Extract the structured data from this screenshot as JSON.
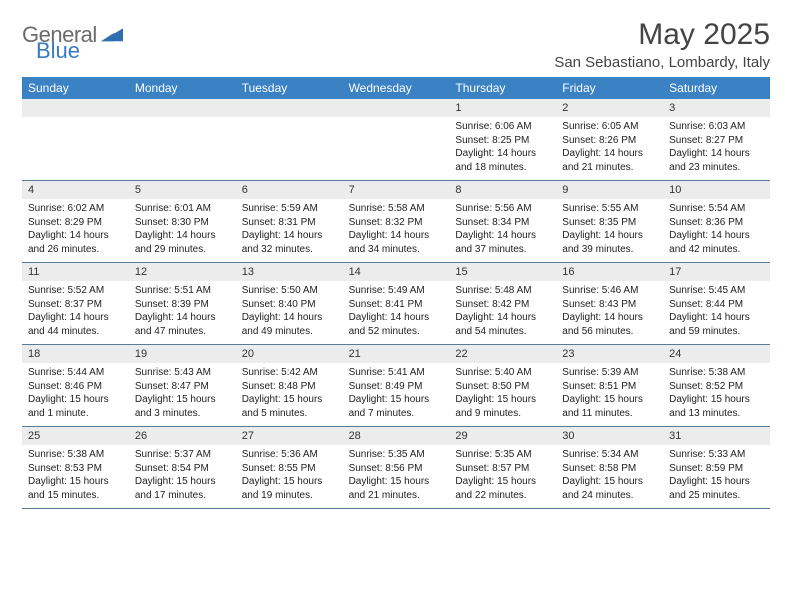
{
  "brand": {
    "name_a": "General",
    "name_b": "Blue",
    "color_a": "#6b6b6b",
    "color_b": "#3a7bbf"
  },
  "title": "May 2025",
  "location": "San Sebastiano, Lombardy, Italy",
  "colors": {
    "header_bg": "#3a82c4",
    "header_text": "#ffffff",
    "daynum_bg": "#ececec",
    "border": "#5a7a9a",
    "text": "#222222",
    "bg": "#ffffff"
  },
  "fonts": {
    "title_size": 30,
    "location_size": 15,
    "weekday_size": 12,
    "daynum_size": 11,
    "body_size": 10
  },
  "weekdays": [
    "Sunday",
    "Monday",
    "Tuesday",
    "Wednesday",
    "Thursday",
    "Friday",
    "Saturday"
  ],
  "weeks": [
    [
      null,
      null,
      null,
      null,
      {
        "n": "1",
        "sr": "6:06 AM",
        "ss": "8:25 PM",
        "dl": "14 hours and 18 minutes."
      },
      {
        "n": "2",
        "sr": "6:05 AM",
        "ss": "8:26 PM",
        "dl": "14 hours and 21 minutes."
      },
      {
        "n": "3",
        "sr": "6:03 AM",
        "ss": "8:27 PM",
        "dl": "14 hours and 23 minutes."
      }
    ],
    [
      {
        "n": "4",
        "sr": "6:02 AM",
        "ss": "8:29 PM",
        "dl": "14 hours and 26 minutes."
      },
      {
        "n": "5",
        "sr": "6:01 AM",
        "ss": "8:30 PM",
        "dl": "14 hours and 29 minutes."
      },
      {
        "n": "6",
        "sr": "5:59 AM",
        "ss": "8:31 PM",
        "dl": "14 hours and 32 minutes."
      },
      {
        "n": "7",
        "sr": "5:58 AM",
        "ss": "8:32 PM",
        "dl": "14 hours and 34 minutes."
      },
      {
        "n": "8",
        "sr": "5:56 AM",
        "ss": "8:34 PM",
        "dl": "14 hours and 37 minutes."
      },
      {
        "n": "9",
        "sr": "5:55 AM",
        "ss": "8:35 PM",
        "dl": "14 hours and 39 minutes."
      },
      {
        "n": "10",
        "sr": "5:54 AM",
        "ss": "8:36 PM",
        "dl": "14 hours and 42 minutes."
      }
    ],
    [
      {
        "n": "11",
        "sr": "5:52 AM",
        "ss": "8:37 PM",
        "dl": "14 hours and 44 minutes."
      },
      {
        "n": "12",
        "sr": "5:51 AM",
        "ss": "8:39 PM",
        "dl": "14 hours and 47 minutes."
      },
      {
        "n": "13",
        "sr": "5:50 AM",
        "ss": "8:40 PM",
        "dl": "14 hours and 49 minutes."
      },
      {
        "n": "14",
        "sr": "5:49 AM",
        "ss": "8:41 PM",
        "dl": "14 hours and 52 minutes."
      },
      {
        "n": "15",
        "sr": "5:48 AM",
        "ss": "8:42 PM",
        "dl": "14 hours and 54 minutes."
      },
      {
        "n": "16",
        "sr": "5:46 AM",
        "ss": "8:43 PM",
        "dl": "14 hours and 56 minutes."
      },
      {
        "n": "17",
        "sr": "5:45 AM",
        "ss": "8:44 PM",
        "dl": "14 hours and 59 minutes."
      }
    ],
    [
      {
        "n": "18",
        "sr": "5:44 AM",
        "ss": "8:46 PM",
        "dl": "15 hours and 1 minute."
      },
      {
        "n": "19",
        "sr": "5:43 AM",
        "ss": "8:47 PM",
        "dl": "15 hours and 3 minutes."
      },
      {
        "n": "20",
        "sr": "5:42 AM",
        "ss": "8:48 PM",
        "dl": "15 hours and 5 minutes."
      },
      {
        "n": "21",
        "sr": "5:41 AM",
        "ss": "8:49 PM",
        "dl": "15 hours and 7 minutes."
      },
      {
        "n": "22",
        "sr": "5:40 AM",
        "ss": "8:50 PM",
        "dl": "15 hours and 9 minutes."
      },
      {
        "n": "23",
        "sr": "5:39 AM",
        "ss": "8:51 PM",
        "dl": "15 hours and 11 minutes."
      },
      {
        "n": "24",
        "sr": "5:38 AM",
        "ss": "8:52 PM",
        "dl": "15 hours and 13 minutes."
      }
    ],
    [
      {
        "n": "25",
        "sr": "5:38 AM",
        "ss": "8:53 PM",
        "dl": "15 hours and 15 minutes."
      },
      {
        "n": "26",
        "sr": "5:37 AM",
        "ss": "8:54 PM",
        "dl": "15 hours and 17 minutes."
      },
      {
        "n": "27",
        "sr": "5:36 AM",
        "ss": "8:55 PM",
        "dl": "15 hours and 19 minutes."
      },
      {
        "n": "28",
        "sr": "5:35 AM",
        "ss": "8:56 PM",
        "dl": "15 hours and 21 minutes."
      },
      {
        "n": "29",
        "sr": "5:35 AM",
        "ss": "8:57 PM",
        "dl": "15 hours and 22 minutes."
      },
      {
        "n": "30",
        "sr": "5:34 AM",
        "ss": "8:58 PM",
        "dl": "15 hours and 24 minutes."
      },
      {
        "n": "31",
        "sr": "5:33 AM",
        "ss": "8:59 PM",
        "dl": "15 hours and 25 minutes."
      }
    ]
  ],
  "labels": {
    "sunrise": "Sunrise:",
    "sunset": "Sunset:",
    "daylight": "Daylight:"
  }
}
